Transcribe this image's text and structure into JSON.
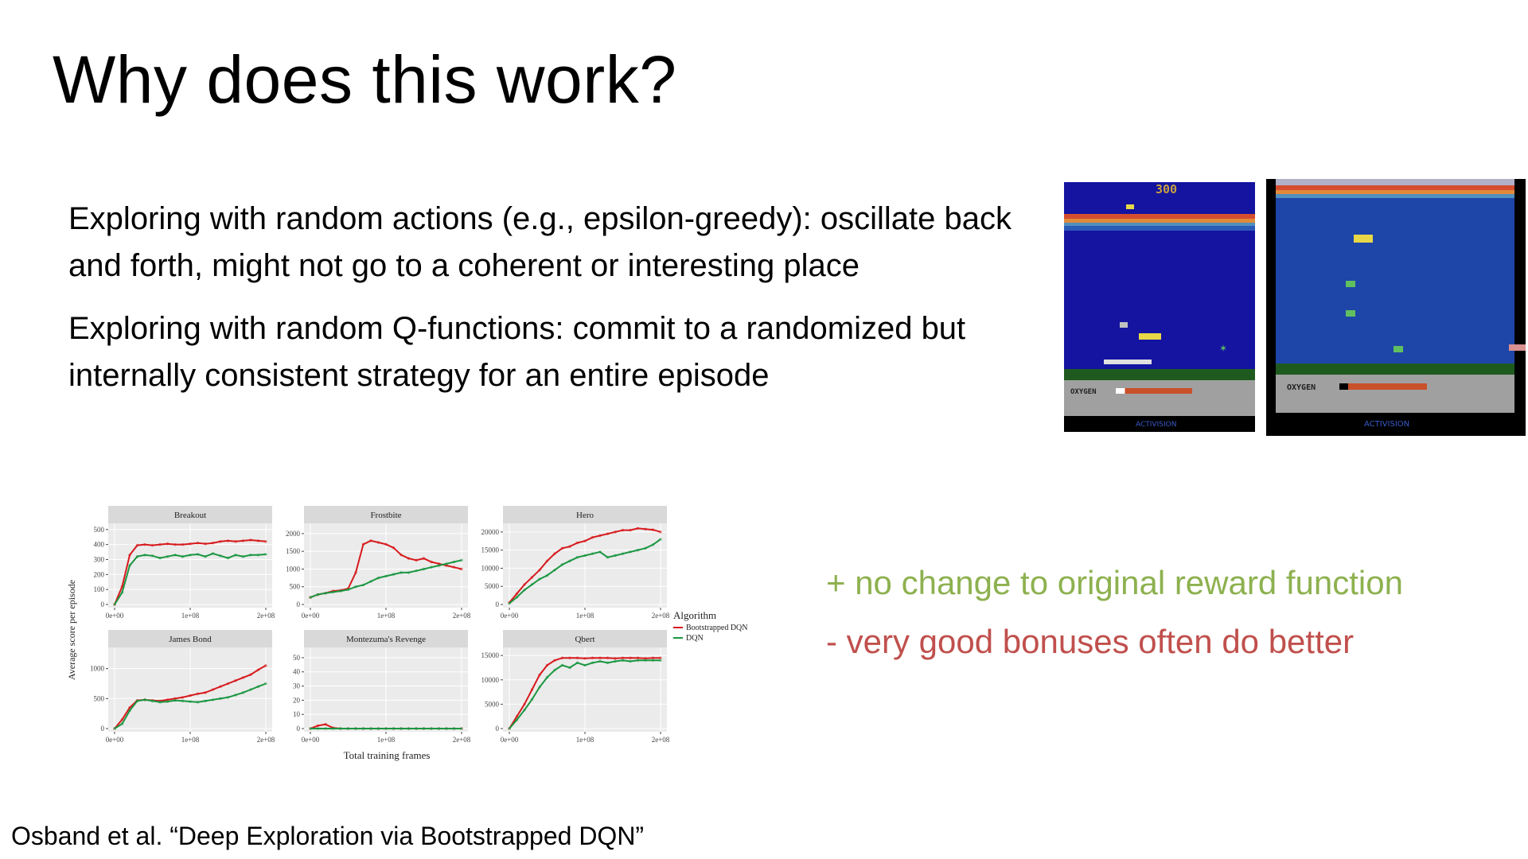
{
  "slide": {
    "title": "Why does this work?",
    "bullets": [
      "Exploring with random actions (e.g., epsilon-greedy): oscillate back and forth, might not go to a coherent or interesting place",
      "Exploring with random Q-functions: commit to a randomized but internally consistent strategy for an entire episode"
    ],
    "pro": "+ no change to original reward function",
    "con": "- very good bonuses often do better",
    "citation": "Osband et al. “Deep Exploration via Bootstrapped DQN”",
    "colors": {
      "pro": "#8db14f",
      "con": "#c0504d"
    }
  },
  "game_screens": [
    {
      "score": "300",
      "oxygen_label": "OXYGEN",
      "brand": "ACTIVISION",
      "oxygen_level": 0.12
    },
    {
      "score": "",
      "oxygen_label": "OXYGEN",
      "brand": "ACTIVISION",
      "oxygen_level": 0.1
    }
  ],
  "chart_data": {
    "type": "line",
    "ylabel": "Average score per episode",
    "xlabel": "Total training frames",
    "x_tick_labels": [
      "0e+00",
      "1e+08",
      "2e+08"
    ],
    "x_ticks": [
      0,
      100000000,
      200000000
    ],
    "xlim": [
      0,
      200000000
    ],
    "legend": {
      "title": "Algorithm",
      "placement": "right"
    },
    "colors": {
      "Bootstrapped DQN": "#d7191c",
      "DQN": "#1a9641"
    },
    "x": [
      0,
      10000000,
      20000000,
      30000000,
      40000000,
      50000000,
      60000000,
      70000000,
      80000000,
      90000000,
      100000000,
      110000000,
      120000000,
      130000000,
      140000000,
      150000000,
      160000000,
      170000000,
      180000000,
      190000000,
      200000000
    ],
    "panels": [
      {
        "title": "Breakout",
        "ylim": [
          0,
          520
        ],
        "yticks": [
          0,
          100,
          200,
          300,
          400,
          500
        ],
        "series": [
          {
            "name": "Bootstrapped DQN",
            "values": [
              0,
              120,
              330,
              395,
              400,
              395,
              400,
              405,
              400,
              400,
              405,
              410,
              405,
              410,
              420,
              425,
              420,
              425,
              430,
              425,
              420
            ]
          },
          {
            "name": "DQN",
            "values": [
              0,
              80,
              260,
              320,
              330,
              325,
              310,
              320,
              330,
              320,
              330,
              335,
              320,
              340,
              325,
              310,
              330,
              320,
              330,
              330,
              335
            ]
          }
        ]
      },
      {
        "title": "Frostbite",
        "ylim": [
          0,
          2200
        ],
        "yticks": [
          0,
          500,
          1000,
          1500,
          2000
        ],
        "series": [
          {
            "name": "Bootstrapped DQN",
            "values": [
              200,
              280,
              320,
              380,
              400,
              450,
              900,
              1700,
              1800,
              1750,
              1700,
              1600,
              1400,
              1300,
              1250,
              1300,
              1200,
              1150,
              1100,
              1050,
              1000
            ]
          },
          {
            "name": "DQN",
            "values": [
              200,
              280,
              320,
              350,
              380,
              420,
              500,
              550,
              650,
              750,
              800,
              850,
              900,
              900,
              950,
              1000,
              1050,
              1100,
              1150,
              1200,
              1250
            ]
          }
        ]
      },
      {
        "title": "Hero",
        "ylim": [
          0,
          21500
        ],
        "yticks": [
          0,
          5000,
          10000,
          15000,
          20000
        ],
        "series": [
          {
            "name": "Bootstrapped DQN",
            "values": [
              500,
              3000,
              5500,
              7500,
              9500,
              12000,
              14000,
              15500,
              16000,
              17000,
              17500,
              18500,
              19000,
              19500,
              20000,
              20500,
              20500,
              21000,
              20800,
              20600,
              20000
            ]
          },
          {
            "name": "DQN",
            "values": [
              300,
              2000,
              4000,
              5500,
              7000,
              8000,
              9500,
              11000,
              12000,
              13000,
              13500,
              14000,
              14500,
              13000,
              13500,
              14000,
              14500,
              15000,
              15500,
              16500,
              18000
            ]
          }
        ]
      },
      {
        "title": "James Bond",
        "ylim": [
          0,
          1300
        ],
        "yticks": [
          0,
          500,
          1000
        ],
        "series": [
          {
            "name": "Bootstrapped DQN",
            "values": [
              0,
              150,
              350,
              470,
              480,
              470,
              460,
              480,
              500,
              520,
              550,
              580,
              600,
              650,
              700,
              750,
              800,
              850,
              900,
              980,
              1050
            ]
          },
          {
            "name": "DQN",
            "values": [
              0,
              80,
              300,
              460,
              480,
              460,
              440,
              450,
              470,
              460,
              450,
              440,
              460,
              480,
              500,
              520,
              560,
              600,
              650,
              700,
              750
            ]
          }
        ]
      },
      {
        "title": "Montezuma's Revenge",
        "ylim": [
          0,
          55
        ],
        "yticks": [
          0,
          10,
          20,
          30,
          40,
          50
        ],
        "series": [
          {
            "name": "Bootstrapped DQN",
            "values": [
              0,
              2,
              3,
              0.5,
              0,
              0,
              0,
              0,
              0,
              0,
              0,
              0,
              0,
              0,
              0,
              0,
              0,
              0,
              0,
              0,
              0
            ]
          },
          {
            "name": "DQN",
            "values": [
              0,
              0,
              0,
              0,
              0,
              0,
              0,
              0,
              0,
              0,
              0,
              0,
              0,
              0,
              0,
              0,
              0,
              0,
              0,
              0,
              0
            ]
          }
        ]
      },
      {
        "title": "Qbert",
        "ylim": [
          0,
          16000
        ],
        "yticks": [
          0,
          5000,
          10000,
          15000
        ],
        "series": [
          {
            "name": "Bootstrapped DQN",
            "values": [
              0,
              2500,
              5000,
              8000,
              11000,
              13000,
              14000,
              14500,
              14500,
              14500,
              14400,
              14500,
              14500,
              14500,
              14400,
              14500,
              14500,
              14500,
              14400,
              14500,
              14500
            ]
          },
          {
            "name": "DQN",
            "values": [
              0,
              1800,
              3800,
              6000,
              8500,
              10500,
              12000,
              13000,
              12500,
              13500,
              13000,
              13500,
              13800,
              13500,
              13800,
              14000,
              13800,
              14000,
              14000,
              14000,
              14000
            ]
          }
        ]
      }
    ]
  }
}
